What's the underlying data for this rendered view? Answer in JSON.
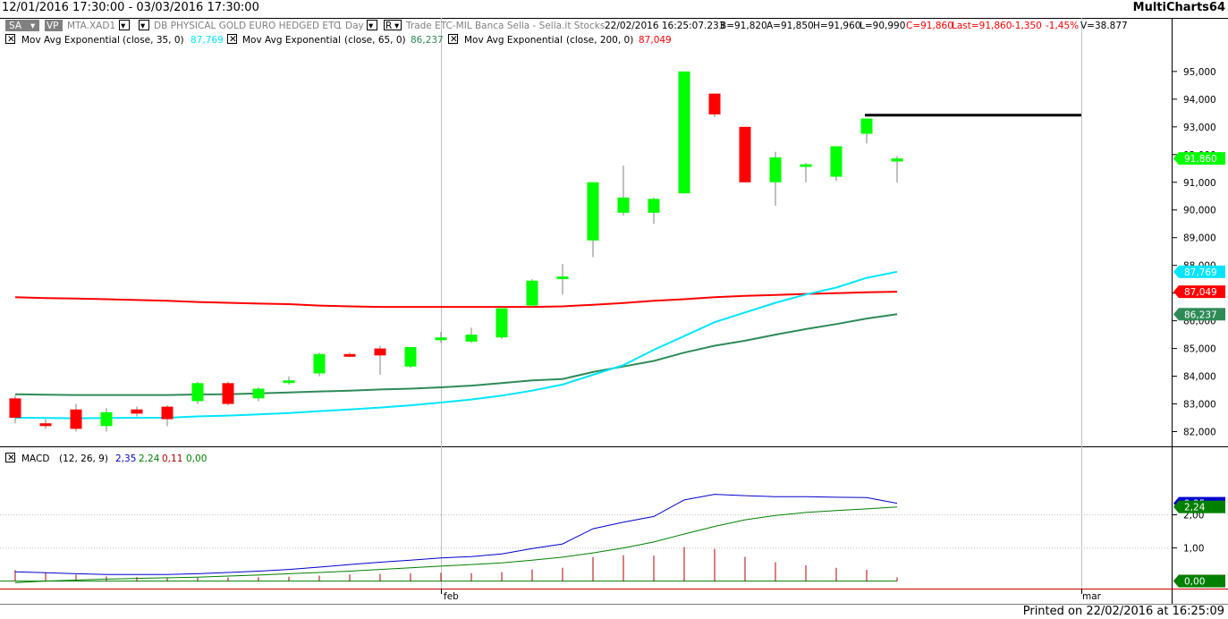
{
  "window": {
    "date_range": "12/01/2016 17:30:00 - 03/03/2016 17:30:00",
    "app_name": "MultiCharts64",
    "footer_text": "Printed on 22/02/2016 at 16:25:09"
  },
  "instrument_bar": {
    "sa_button": "SA",
    "vp_button": "VP",
    "symbol": "MTA.XAD1",
    "description": "DB PHYSICAL GOLD EURO HEDGED ETC",
    "resolution": "1 Day",
    "r_button": "R",
    "exchange": "Trade  ETC-MIL  Banca Sella - Sella.it  Stocks",
    "timestamp": "22/02/2016  16:25:07.233",
    "bid": "B=91,820",
    "ask": "A=91,850",
    "high": "H=91,960",
    "low": "L=90,990",
    "close": "C=91,860",
    "last": "Last=91,860",
    "change": "-1,350",
    "change_pct": "-1,45%",
    "volume": "V=38.877"
  },
  "indicators": [
    {
      "name": "Mov Avg Exponential",
      "params": "(close,  35,  0)",
      "value": "87,769",
      "color": "#00e5ff"
    },
    {
      "name": "Mov Avg Exponential",
      "params": "(close,  65,  0)",
      "value": "86,237",
      "color": "#2e8b57"
    },
    {
      "name": "Mov Avg Exponential",
      "params": "(close,  200,  0)",
      "value": "87,049",
      "color": "#ff0000"
    }
  ],
  "macd_legend": {
    "name": "MACD",
    "params": "(12,  26,  9)",
    "macd": "2,35",
    "signal": "2,24",
    "hist": "0,11",
    "zero": "0,00"
  },
  "colors": {
    "up": "#00ff00",
    "down": "#ff0000",
    "ema35": "#00e5ff",
    "ema65": "#2e8b57",
    "ema200": "#ff0000",
    "macd": "#0000cd",
    "signal": "#008000",
    "hist": "#b00000",
    "grid": "#c0c0c0",
    "resistance": "#000000"
  },
  "chart_data": [
    {
      "type": "candlestick",
      "title": "",
      "ylim": [
        81.5,
        95.9
      ],
      "y_ticks": [
        "82,000",
        "83,000",
        "84,000",
        "85,000",
        "86,000",
        "87,000",
        "88,000",
        "89,000",
        "90,000",
        "91,000",
        "92,000",
        "93,000",
        "94,000",
        "95,000"
      ],
      "x_labels": [
        "feb",
        "mar"
      ],
      "candles": [
        {
          "o": 83.2,
          "h": 83.3,
          "l": 82.3,
          "c": 82.5
        },
        {
          "o": 82.3,
          "h": 82.45,
          "l": 82.1,
          "c": 82.2
        },
        {
          "o": 82.8,
          "h": 83.0,
          "l": 82.0,
          "c": 82.1
        },
        {
          "o": 82.2,
          "h": 82.85,
          "l": 82.0,
          "c": 82.7
        },
        {
          "o": 82.8,
          "h": 82.9,
          "l": 82.55,
          "c": 82.65
        },
        {
          "o": 82.9,
          "h": 82.95,
          "l": 82.2,
          "c": 82.45
        },
        {
          "o": 83.1,
          "h": 83.8,
          "l": 83.0,
          "c": 83.75
        },
        {
          "o": 83.75,
          "h": 83.8,
          "l": 82.95,
          "c": 83.0
        },
        {
          "o": 83.2,
          "h": 83.6,
          "l": 83.1,
          "c": 83.55
        },
        {
          "o": 83.8,
          "h": 84.0,
          "l": 83.7,
          "c": 83.85
        },
        {
          "o": 84.1,
          "h": 84.85,
          "l": 84.0,
          "c": 84.8
        },
        {
          "o": 84.8,
          "h": 84.85,
          "l": 84.7,
          "c": 84.75
        },
        {
          "o": 85.0,
          "h": 85.1,
          "l": 84.05,
          "c": 84.75
        },
        {
          "o": 84.35,
          "h": 85.05,
          "l": 84.3,
          "c": 85.05
        },
        {
          "o": 85.3,
          "h": 85.6,
          "l": 85.2,
          "c": 85.4
        },
        {
          "o": 85.25,
          "h": 85.75,
          "l": 85.2,
          "c": 85.5
        },
        {
          "o": 85.4,
          "h": 86.45,
          "l": 85.35,
          "c": 86.45
        },
        {
          "o": 86.55,
          "h": 87.5,
          "l": 86.5,
          "c": 87.45
        },
        {
          "o": 87.55,
          "h": 88.05,
          "l": 86.95,
          "c": 87.6
        },
        {
          "o": 88.9,
          "h": 91.0,
          "l": 88.3,
          "c": 91.0
        },
        {
          "o": 89.9,
          "h": 91.6,
          "l": 89.8,
          "c": 90.45
        },
        {
          "o": 89.9,
          "h": 90.45,
          "l": 89.5,
          "c": 90.4
        },
        {
          "o": 90.6,
          "h": 95.0,
          "l": 90.6,
          "c": 95.0
        },
        {
          "o": 94.2,
          "h": 94.2,
          "l": 93.35,
          "c": 93.45
        },
        {
          "o": 93.0,
          "h": 93.0,
          "l": 91.0,
          "c": 91.0
        },
        {
          "o": 91.0,
          "h": 92.1,
          "l": 90.15,
          "c": 91.9
        },
        {
          "o": 91.65,
          "h": 91.7,
          "l": 91.0,
          "c": 91.65
        },
        {
          "o": 91.2,
          "h": 92.3,
          "l": 91.05,
          "c": 92.3
        },
        {
          "o": 92.75,
          "h": 93.3,
          "l": 92.4,
          "c": 93.3
        },
        {
          "o": 91.75,
          "h": 91.95,
          "l": 90.99,
          "c": 91.86
        }
      ],
      "ema35": [
        82.5,
        82.49,
        82.48,
        82.49,
        82.5,
        82.5,
        82.55,
        82.58,
        82.62,
        82.67,
        82.74,
        82.8,
        82.87,
        82.95,
        83.05,
        83.16,
        83.3,
        83.48,
        83.7,
        84.05,
        84.4,
        84.95,
        85.45,
        85.95,
        86.3,
        86.65,
        86.95,
        87.2,
        87.55,
        87.769
      ],
      "ema65": [
        83.35,
        83.33,
        83.32,
        83.32,
        83.32,
        83.32,
        83.34,
        83.35,
        83.38,
        83.41,
        83.45,
        83.48,
        83.52,
        83.55,
        83.6,
        83.66,
        83.75,
        83.85,
        83.9,
        84.15,
        84.35,
        84.55,
        84.85,
        85.1,
        85.28,
        85.5,
        85.7,
        85.88,
        86.08,
        86.237
      ],
      "ema200": [
        86.85,
        86.82,
        86.8,
        86.78,
        86.75,
        86.72,
        86.68,
        86.65,
        86.62,
        86.6,
        86.55,
        86.52,
        86.5,
        86.5,
        86.5,
        86.5,
        86.5,
        86.5,
        86.52,
        86.58,
        86.64,
        86.72,
        86.78,
        86.85,
        86.9,
        86.93,
        86.97,
        87.0,
        87.03,
        87.049
      ],
      "resistance_level": 93.42,
      "last_price": 91.86
    },
    {
      "type": "line",
      "title": "MACD",
      "ylim": [
        -0.2,
        3.5
      ],
      "y_ticks": [
        "1,00",
        "2,00"
      ],
      "macd": [
        0.28,
        0.25,
        0.22,
        0.2,
        0.2,
        0.2,
        0.22,
        0.26,
        0.3,
        0.35,
        0.42,
        0.5,
        0.57,
        0.63,
        0.7,
        0.74,
        0.82,
        0.98,
        1.12,
        1.58,
        1.78,
        1.95,
        2.45,
        2.62,
        2.58,
        2.55,
        2.55,
        2.53,
        2.52,
        2.35
      ],
      "signal": [
        -0.05,
        0.0,
        0.03,
        0.06,
        0.08,
        0.1,
        0.12,
        0.15,
        0.18,
        0.22,
        0.26,
        0.3,
        0.35,
        0.4,
        0.45,
        0.5,
        0.55,
        0.63,
        0.72,
        0.85,
        1.0,
        1.18,
        1.42,
        1.65,
        1.85,
        1.98,
        2.07,
        2.13,
        2.18,
        2.24
      ],
      "hist": [
        0.33,
        0.25,
        0.19,
        0.14,
        0.12,
        0.1,
        0.1,
        0.11,
        0.12,
        0.13,
        0.16,
        0.2,
        0.22,
        0.23,
        0.25,
        0.24,
        0.27,
        0.35,
        0.4,
        0.73,
        0.78,
        0.77,
        1.03,
        0.97,
        0.73,
        0.57,
        0.48,
        0.4,
        0.34,
        0.11
      ]
    }
  ]
}
